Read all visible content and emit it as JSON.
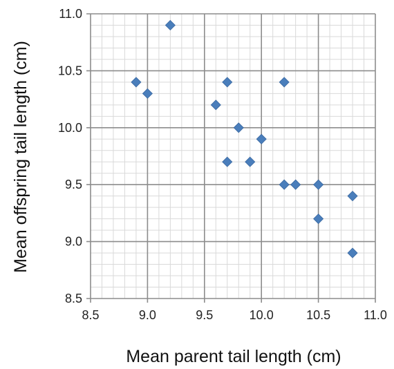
{
  "chart_data": {
    "type": "scatter",
    "title": "",
    "xlabel": "Mean parent tail length (cm)",
    "ylabel": "Mean offspring tail length (cm)",
    "xlim": [
      8.5,
      11.0
    ],
    "ylim": [
      8.5,
      11.0
    ],
    "x_ticks": [
      "8.5",
      "9.0",
      "9.5",
      "10.0",
      "10.5",
      "11.0"
    ],
    "y_ticks": [
      "8.5",
      "9.0",
      "9.5",
      "10.0",
      "10.5",
      "11.0"
    ],
    "major_step": 0.5,
    "minor_step": 0.1,
    "grid": true,
    "marker": "diamond",
    "marker_color": "#4a7ebb",
    "points": [
      {
        "x": 8.9,
        "y": 10.4
      },
      {
        "x": 9.0,
        "y": 10.3
      },
      {
        "x": 9.2,
        "y": 10.9
      },
      {
        "x": 9.6,
        "y": 10.2
      },
      {
        "x": 9.7,
        "y": 10.4
      },
      {
        "x": 9.7,
        "y": 9.7
      },
      {
        "x": 9.8,
        "y": 10.0
      },
      {
        "x": 9.9,
        "y": 9.7
      },
      {
        "x": 10.0,
        "y": 9.9
      },
      {
        "x": 10.2,
        "y": 10.4
      },
      {
        "x": 10.2,
        "y": 9.5
      },
      {
        "x": 10.3,
        "y": 9.5
      },
      {
        "x": 10.5,
        "y": 9.5
      },
      {
        "x": 10.5,
        "y": 9.2
      },
      {
        "x": 10.8,
        "y": 9.4
      },
      {
        "x": 10.8,
        "y": 8.9
      }
    ]
  }
}
